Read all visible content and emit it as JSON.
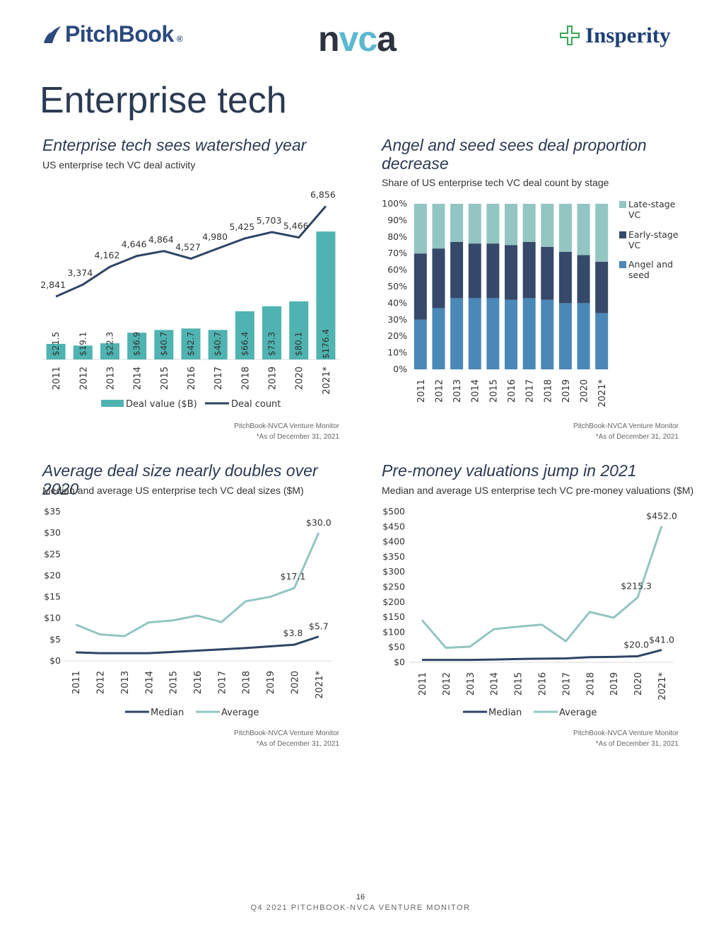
{
  "logos": {
    "pitchbook": "PitchBook",
    "nvca_n": "n",
    "nvca_vc": "vc",
    "nvca_a": "a",
    "insperity": "Insperity"
  },
  "page_title": "Enterprise tech",
  "charts": {
    "c1": {
      "title": "Enterprise tech sees watershed year",
      "subtitle": "US enterprise tech VC deal activity",
      "source1": "PitchBook-NVCA Venture Monitor",
      "source2": "*As of  December 31, 2021"
    },
    "c2": {
      "title": "Angel and seed sees deal proportion decrease",
      "subtitle": "Share of US enterprise tech VC deal count by stage",
      "source1": "PitchBook-NVCA Venture Monitor",
      "source2": "*As of  December 31, 2021"
    },
    "c3": {
      "title": "Average deal size nearly doubles over 2020",
      "subtitle": "Median and average US enterprise tech VC deal sizes ($M)",
      "source1": "PitchBook-NVCA Venture Monitor",
      "source2": "*As of December 31, 2021"
    },
    "c4": {
      "title": "Pre-money valuations jump in 2021",
      "subtitle": "Median and average US enterprise tech VC pre-money valuations ($M)",
      "source1": "PitchBook-NVCA Venture Monitor",
      "source2": "*As of December 31, 2021"
    }
  },
  "chart_data": [
    {
      "type": "bar+line",
      "categories": [
        "2011",
        "2012",
        "2013",
        "2014",
        "2015",
        "2016",
        "2017",
        "2018",
        "2019",
        "2020",
        "2021*"
      ],
      "series": [
        {
          "name": "Deal value ($B)",
          "type": "bar",
          "values": [
            21.5,
            19.1,
            22.3,
            36.9,
            40.7,
            42.7,
            40.7,
            66.4,
            73.3,
            80.1,
            176.4
          ],
          "labels": [
            "$21.5",
            "$19.1",
            "$22.3",
            "$36.9",
            "$40.7",
            "$42.7",
            "$40.7",
            "$66.4",
            "$73.3",
            "$80.1",
            "$176.4"
          ],
          "color": "#4fb3b1"
        },
        {
          "name": "Deal count",
          "type": "line",
          "values": [
            2841,
            3374,
            4162,
            4646,
            4864,
            4527,
            4980,
            5425,
            5703,
            5466,
            6856
          ],
          "labels": [
            "2,841",
            "3,374",
            "4,162",
            "4,646",
            "4,864",
            "4,527",
            "4,980",
            "5,425",
            "5,703",
            "5,466",
            "6,856"
          ],
          "color": "#2f4566"
        }
      ]
    },
    {
      "type": "stacked-bar-100",
      "categories": [
        "2011",
        "2012",
        "2013",
        "2014",
        "2015",
        "2016",
        "2017",
        "2018",
        "2019",
        "2020",
        "2021*"
      ],
      "y_ticks": [
        "0%",
        "10%",
        "20%",
        "30%",
        "40%",
        "50%",
        "60%",
        "70%",
        "80%",
        "90%",
        "100%"
      ],
      "series": [
        {
          "name": "Angel and seed",
          "values": [
            30,
            37,
            43,
            43,
            43,
            42,
            43,
            42,
            40,
            40,
            34
          ],
          "color": "#4a88b8"
        },
        {
          "name": "Early-stage VC",
          "values": [
            40,
            36,
            34,
            33,
            33,
            33,
            34,
            32,
            31,
            29,
            31
          ],
          "color": "#36496a"
        },
        {
          "name": "Late-stage VC",
          "values": [
            30,
            27,
            23,
            24,
            24,
            25,
            23,
            26,
            29,
            31,
            35
          ],
          "color": "#93c5c2"
        }
      ]
    },
    {
      "type": "line",
      "categories": [
        "2011",
        "2012",
        "2013",
        "2014",
        "2015",
        "2016",
        "2017",
        "2018",
        "2019",
        "2020",
        "2021*"
      ],
      "y_ticks": [
        "$0",
        "$5",
        "$10",
        "$15",
        "$20",
        "$25",
        "$30",
        "$35"
      ],
      "ylim": [
        0,
        35
      ],
      "series": [
        {
          "name": "Median",
          "values": [
            2.0,
            1.8,
            1.8,
            1.8,
            2.1,
            2.4,
            2.7,
            3.0,
            3.4,
            3.8,
            5.7
          ],
          "color": "#2f4566"
        },
        {
          "name": "Average",
          "values": [
            8.5,
            6.2,
            5.8,
            9.0,
            9.5,
            10.6,
            9.1,
            14.0,
            15.0,
            17.1,
            30.0
          ],
          "color": "#93c5c2"
        }
      ],
      "data_labels": [
        {
          "series": 1,
          "index": 9,
          "text": "$17.1"
        },
        {
          "series": 1,
          "index": 10,
          "text": "$30.0"
        },
        {
          "series": 0,
          "index": 9,
          "text": "$3.8"
        },
        {
          "series": 0,
          "index": 10,
          "text": "$5.7"
        }
      ]
    },
    {
      "type": "line",
      "categories": [
        "2011",
        "2012",
        "2013",
        "2014",
        "2015",
        "2016",
        "2017",
        "2018",
        "2019",
        "2020",
        "2021*"
      ],
      "y_ticks": [
        "$0",
        "$50",
        "$100",
        "$150",
        "$200",
        "$250",
        "$300",
        "$350",
        "$400",
        "$450",
        "$500"
      ],
      "ylim": [
        0,
        500
      ],
      "series": [
        {
          "name": "Median",
          "values": [
            8,
            8,
            8,
            9,
            11,
            12,
            13,
            17,
            18,
            20.0,
            41.0
          ],
          "color": "#2f4566"
        },
        {
          "name": "Average",
          "values": [
            140,
            48,
            52,
            110,
            118,
            125,
            70,
            167,
            148,
            215.3,
            452.0
          ],
          "color": "#93c5c2"
        }
      ],
      "data_labels": [
        {
          "series": 1,
          "index": 9,
          "text": "$215.3"
        },
        {
          "series": 1,
          "index": 10,
          "text": "$452.0"
        },
        {
          "series": 0,
          "index": 9,
          "text": "$20.0"
        },
        {
          "series": 0,
          "index": 10,
          "text": "$41.0"
        }
      ]
    }
  ],
  "footer": {
    "page": "16",
    "report": "Q4 2021 PITCHBOOK-NVCA VENTURE MONITOR"
  }
}
